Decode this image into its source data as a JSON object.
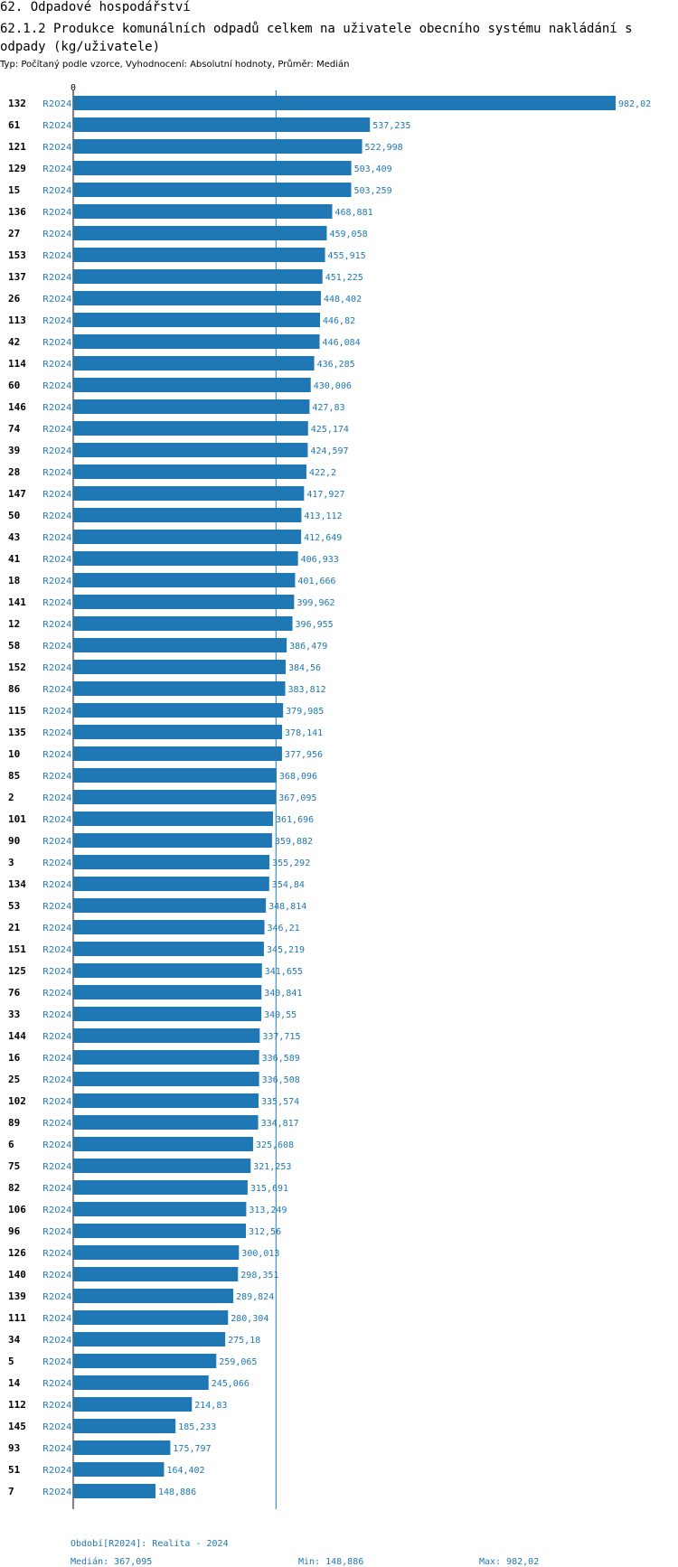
{
  "header": {
    "section": "62. Odpadové hospodářství",
    "title": "62.1.2 Produkce komunálních odpadů celkem na uživatele obecního systému nakládání s odpady (kg/uživatele)",
    "subtitle": "Typ: Počítaný podle vzorce, Vyhodnocení: Absolutní hodnoty, Průměr: Medián"
  },
  "chart_data": {
    "type": "bar",
    "orientation": "horizontal",
    "x_tick_labels": [
      "0"
    ],
    "reference_line": {
      "label": "Medián",
      "value": 367.095
    },
    "xlim": [
      0,
      982.02
    ],
    "bar_color": "#1f77b4",
    "categories": [
      "132",
      "61",
      "121",
      "129",
      "15",
      "136",
      "27",
      "153",
      "137",
      "26",
      "113",
      "42",
      "114",
      "60",
      "146",
      "74",
      "39",
      "28",
      "147",
      "50",
      "43",
      "41",
      "18",
      "141",
      "12",
      "58",
      "152",
      "86",
      "115",
      "135",
      "10",
      "85",
      "2",
      "101",
      "90",
      "3",
      "134",
      "53",
      "21",
      "151",
      "125",
      "76",
      "33",
      "144",
      "16",
      "25",
      "102",
      "89",
      "6",
      "75",
      "82",
      "106",
      "96",
      "126",
      "140",
      "139",
      "111",
      "34",
      "5",
      "14",
      "112",
      "145",
      "93",
      "51",
      "7"
    ],
    "period": "R2024",
    "values": [
      982.02,
      537.235,
      522.998,
      503.409,
      503.259,
      468.881,
      459.058,
      455.915,
      451.225,
      448.402,
      446.82,
      446.084,
      436.285,
      430.006,
      427.83,
      425.174,
      424.597,
      422.2,
      417.927,
      413.112,
      412.649,
      406.933,
      401.666,
      399.962,
      396.955,
      386.479,
      384.56,
      383.812,
      379.985,
      378.141,
      377.956,
      368.096,
      367.095,
      361.696,
      359.882,
      355.292,
      354.84,
      348.814,
      346.21,
      345.219,
      341.655,
      340.841,
      340.55,
      337.715,
      336.589,
      336.508,
      335.574,
      334.817,
      325.608,
      321.253,
      315.691,
      313.249,
      312.56,
      300.013,
      298.351,
      289.824,
      280.304,
      275.18,
      259.065,
      245.066,
      214.83,
      185.233,
      175.797,
      164.402,
      148.886
    ],
    "value_labels": [
      "982,02",
      "537,235",
      "522,998",
      "503,409",
      "503,259",
      "468,881",
      "459,058",
      "455,915",
      "451,225",
      "448,402",
      "446,82",
      "446,084",
      "436,285",
      "430,006",
      "427,83",
      "425,174",
      "424,597",
      "422,2",
      "417,927",
      "413,112",
      "412,649",
      "406,933",
      "401,666",
      "399,962",
      "396,955",
      "386,479",
      "384,56",
      "383,812",
      "379,985",
      "378,141",
      "377,956",
      "368,096",
      "367,095",
      "361,696",
      "359,882",
      "355,292",
      "354,84",
      "348,814",
      "346,21",
      "345,219",
      "341,655",
      "340,841",
      "340,55",
      "337,715",
      "336,589",
      "336,508",
      "335,574",
      "334,817",
      "325,608",
      "321,253",
      "315,691",
      "313,249",
      "312,56",
      "300,013",
      "298,351",
      "289,824",
      "280,304",
      "275,18",
      "259,065",
      "245,066",
      "214,83",
      "185,233",
      "175,797",
      "164,402",
      "148,886"
    ]
  },
  "footer": {
    "period": "Období[R2024]: Realita - 2024",
    "median": "Medián: 367,095",
    "min": "Min: 148,886",
    "max": "Max: 982,02"
  }
}
